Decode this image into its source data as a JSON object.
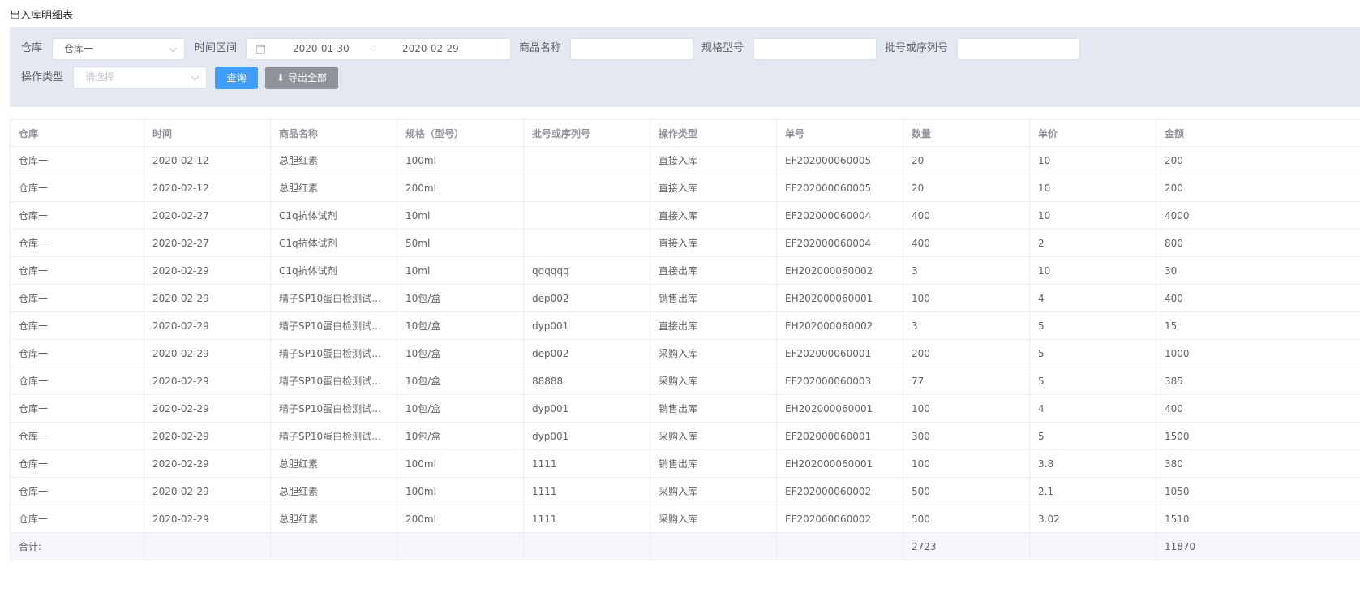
{
  "page_title": "出入库明细表",
  "filters": {
    "warehouse_label": "仓库",
    "warehouse_value": "仓库一",
    "time_label": "时间区间",
    "date_start": "2020-01-30",
    "date_sep": "-",
    "date_end": "2020-02-29",
    "product_label": "商品名称",
    "product_value": "",
    "spec_label": "规格型号",
    "spec_value": "",
    "batch_label": "批号或序列号",
    "batch_value": "",
    "optype_label": "操作类型",
    "optype_placeholder": "请选择",
    "query_button": "查询",
    "export_button": "导出全部"
  },
  "colors": {
    "primary": "#409eff",
    "export": "#909399",
    "filter_bg": "#e4e8f1"
  },
  "table": {
    "headers": [
      "仓库",
      "时间",
      "商品名称",
      "规格（型号）",
      "批号或序列号",
      "操作类型",
      "单号",
      "数量",
      "单价",
      "金额"
    ],
    "rows": [
      [
        "仓库一",
        "2020-02-12",
        "总胆红素",
        "100ml",
        "",
        "直接入库",
        "EF202000060005",
        "20",
        "10",
        "200"
      ],
      [
        "仓库一",
        "2020-02-12",
        "总胆红素",
        "200ml",
        "",
        "直接入库",
        "EF202000060005",
        "20",
        "10",
        "200"
      ],
      [
        "仓库一",
        "2020-02-27",
        "C1q抗体试剂",
        "10ml",
        "",
        "直接入库",
        "EF202000060004",
        "400",
        "10",
        "4000"
      ],
      [
        "仓库一",
        "2020-02-27",
        "C1q抗体试剂",
        "50ml",
        "",
        "直接入库",
        "EF202000060004",
        "400",
        "2",
        "800"
      ],
      [
        "仓库一",
        "2020-02-29",
        "C1q抗体试剂",
        "10ml",
        "qqqqqq",
        "直接出库",
        "EH202000060002",
        "3",
        "10",
        "30"
      ],
      [
        "仓库一",
        "2020-02-29",
        "精子SP10蛋白检测试剂...",
        "10包/盒",
        "dep002",
        "销售出库",
        "EH202000060001",
        "100",
        "4",
        "400"
      ],
      [
        "仓库一",
        "2020-02-29",
        "精子SP10蛋白检测试剂...",
        "10包/盒",
        "dyp001",
        "直接出库",
        "EH202000060002",
        "3",
        "5",
        "15"
      ],
      [
        "仓库一",
        "2020-02-29",
        "精子SP10蛋白检测试剂...",
        "10包/盒",
        "dep002",
        "采购入库",
        "EF202000060001",
        "200",
        "5",
        "1000"
      ],
      [
        "仓库一",
        "2020-02-29",
        "精子SP10蛋白检测试剂...",
        "10包/盒",
        "88888",
        "采购入库",
        "EF202000060003",
        "77",
        "5",
        "385"
      ],
      [
        "仓库一",
        "2020-02-29",
        "精子SP10蛋白检测试剂...",
        "10包/盒",
        "dyp001",
        "销售出库",
        "EH202000060001",
        "100",
        "4",
        "400"
      ],
      [
        "仓库一",
        "2020-02-29",
        "精子SP10蛋白检测试剂...",
        "10包/盒",
        "dyp001",
        "采购入库",
        "EF202000060001",
        "300",
        "5",
        "1500"
      ],
      [
        "仓库一",
        "2020-02-29",
        "总胆红素",
        "100ml",
        "1111",
        "销售出库",
        "EH202000060001",
        "100",
        "3.8",
        "380"
      ],
      [
        "仓库一",
        "2020-02-29",
        "总胆红素",
        "100ml",
        "1111",
        "采购入库",
        "EF202000060002",
        "500",
        "2.1",
        "1050"
      ],
      [
        "仓库一",
        "2020-02-29",
        "总胆红素",
        "200ml",
        "1111",
        "采购入库",
        "EF202000060002",
        "500",
        "3.02",
        "1510"
      ]
    ],
    "summary": [
      "合计:",
      "",
      "",
      "",
      "",
      "",
      "",
      "2723",
      "",
      "11870"
    ]
  }
}
